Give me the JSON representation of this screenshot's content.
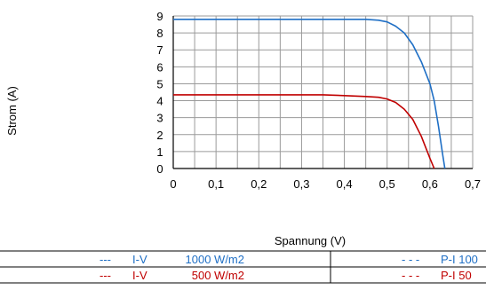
{
  "chart_data": {
    "type": "line",
    "title": "",
    "xlabel": "Spannung (V)",
    "ylabel": "Strom (A)",
    "xlim": [
      0,
      0.7
    ],
    "ylim": [
      0,
      9
    ],
    "x_ticks": [
      "0",
      "0,1",
      "0,2",
      "0,3",
      "0,4",
      "0,5",
      "0,6",
      "0,7"
    ],
    "y_ticks": [
      "0",
      "1",
      "2",
      "3",
      "4",
      "5",
      "6",
      "7",
      "8",
      "9"
    ],
    "grid": true,
    "legend_placement": "bottom",
    "series": [
      {
        "name": "I-V 1000 W/m2",
        "legend_dash": "---",
        "legend_type": "I-V",
        "legend_value": "1000 W/m2",
        "color": "#1f6fc5",
        "points": [
          [
            0,
            8.8
          ],
          [
            0.1,
            8.8
          ],
          [
            0.2,
            8.8
          ],
          [
            0.3,
            8.8
          ],
          [
            0.4,
            8.8
          ],
          [
            0.45,
            8.8
          ],
          [
            0.48,
            8.75
          ],
          [
            0.5,
            8.65
          ],
          [
            0.52,
            8.4
          ],
          [
            0.54,
            8.0
          ],
          [
            0.56,
            7.3
          ],
          [
            0.58,
            6.3
          ],
          [
            0.6,
            5.0
          ],
          [
            0.61,
            4.0
          ],
          [
            0.62,
            2.5
          ],
          [
            0.63,
            0.8
          ],
          [
            0.635,
            0
          ]
        ]
      },
      {
        "name": "I-V 500 W/m2",
        "legend_dash": "---",
        "legend_type": "I-V",
        "legend_value": "500 W/m2",
        "color": "#c00000",
        "points": [
          [
            0,
            4.35
          ],
          [
            0.1,
            4.35
          ],
          [
            0.2,
            4.35
          ],
          [
            0.3,
            4.35
          ],
          [
            0.35,
            4.35
          ],
          [
            0.4,
            4.3
          ],
          [
            0.45,
            4.25
          ],
          [
            0.48,
            4.2
          ],
          [
            0.5,
            4.1
          ],
          [
            0.52,
            3.9
          ],
          [
            0.54,
            3.5
          ],
          [
            0.56,
            2.9
          ],
          [
            0.58,
            1.9
          ],
          [
            0.6,
            0.6
          ],
          [
            0.61,
            0
          ]
        ]
      }
    ],
    "legend_right": [
      {
        "dash": "- - -",
        "label": "P-I  100",
        "color": "#1f6fc5"
      },
      {
        "dash": "- - -",
        "label": "P-I   50",
        "color": "#c00000"
      }
    ]
  }
}
